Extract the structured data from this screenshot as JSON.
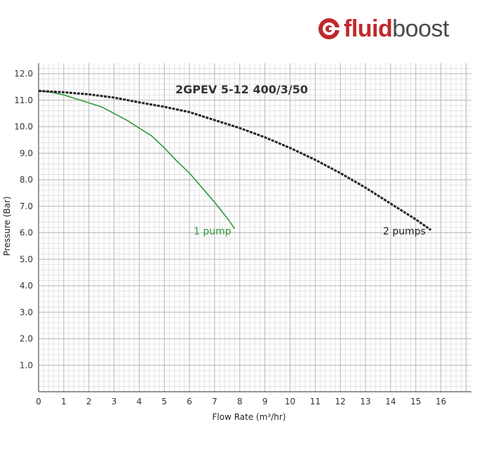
{
  "brand": {
    "bold": "fluid",
    "light": "boost",
    "colors": {
      "red": "#c0282c",
      "grey": "#4a4a4a"
    }
  },
  "chart_data": {
    "type": "line",
    "title": "2GPEV 5-12 400/3/50",
    "xlabel": "Flow Rate (m³/hr)",
    "ylabel": "Pressure (Bar)",
    "xlim": [
      0,
      17
    ],
    "ylim": [
      0,
      12.3
    ],
    "grid": true,
    "x_ticks": [
      "0",
      "1",
      "2",
      "3",
      "4",
      "5",
      "6",
      "7",
      "8",
      "9",
      "10",
      "11",
      "12",
      "13",
      "14",
      "15",
      "16"
    ],
    "y_ticks": [
      "1.0",
      "2.0",
      "3.0",
      "4.0",
      "5.0",
      "6.0",
      "7.0",
      "8.0",
      "9.0",
      "10.0",
      "11.0",
      "12.0"
    ],
    "series": [
      {
        "name": "1 pump",
        "color": "#2e9a3a",
        "x": [
          0,
          0.5,
          1,
          1.5,
          2,
          2.5,
          3,
          3.5,
          4,
          4.5,
          5,
          5.5,
          6,
          6.5,
          7,
          7.5,
          7.8
        ],
        "y": [
          11.35,
          11.3,
          11.2,
          11.05,
          10.9,
          10.75,
          10.5,
          10.25,
          9.95,
          9.65,
          9.2,
          8.7,
          8.25,
          7.7,
          7.15,
          6.55,
          6.15
        ]
      },
      {
        "name": "2 pumps",
        "color": "#222222",
        "x": [
          0,
          1,
          2,
          3,
          4,
          5,
          6,
          7,
          8,
          9,
          10,
          11,
          12,
          13,
          14,
          15,
          15.6
        ],
        "y": [
          11.35,
          11.3,
          11.22,
          11.1,
          10.92,
          10.75,
          10.55,
          10.25,
          9.95,
          9.6,
          9.2,
          8.75,
          8.25,
          7.7,
          7.1,
          6.5,
          6.1
        ]
      }
    ]
  }
}
